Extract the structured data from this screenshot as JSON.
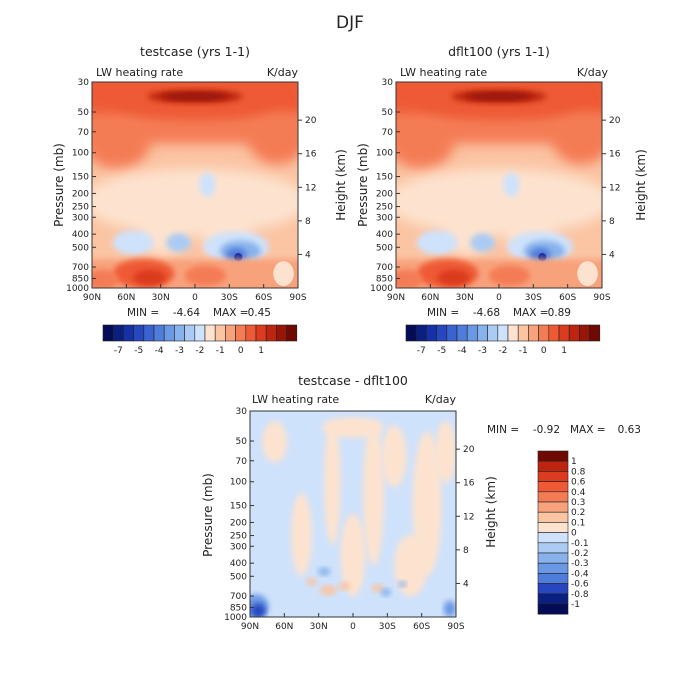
{
  "figure_title": "DJF",
  "colors": {
    "warm": [
      "#fde3cf",
      "#fbc4a3",
      "#f8a27b",
      "#f47c55",
      "#ee5a35",
      "#db3b1e",
      "#bd2510",
      "#981608",
      "#6f0a02"
    ],
    "cool": [
      "#cfe2fb",
      "#aacbf3",
      "#87b2ec",
      "#6a98e4",
      "#4f7ddb",
      "#3a62d0",
      "#2746c0",
      "#1630a8",
      "#0b1f80",
      "#030c55"
    ]
  },
  "chart_data": [
    {
      "type": "heatmap",
      "title": "testcase (yrs 1-1)",
      "left_label": "LW heating rate",
      "right_label": "K/day",
      "xlabel": "",
      "ylabel": "Pressure (mb)",
      "ylabel_right": "Height (km)",
      "x_ticks": [
        "90N",
        "60N",
        "30N",
        "0",
        "30S",
        "60S",
        "90S"
      ],
      "y_ticks": [
        "30",
        "50",
        "70",
        "100",
        "150",
        "200",
        "250",
        "300",
        "400",
        "500",
        "700",
        "850",
        "1000"
      ],
      "y_right_ticks": [
        "20",
        "16",
        "12",
        "8",
        "4"
      ],
      "min_label": "MIN =",
      "min_value": "-4.64",
      "max_label": "MAX =",
      "max_value": "0.45",
      "colorbar_levels": [
        "-7",
        "-5",
        "-4",
        "-3",
        "-2",
        "-1",
        "0",
        "1"
      ],
      "colorbar_orientation": "horizontal"
    },
    {
      "type": "heatmap",
      "title": "dflt100 (yrs 1-1)",
      "left_label": "LW heating rate",
      "right_label": "K/day",
      "xlabel": "",
      "ylabel": "Pressure (mb)",
      "ylabel_right": "Height (km)",
      "x_ticks": [
        "90N",
        "60N",
        "30N",
        "0",
        "30S",
        "60S",
        "90S"
      ],
      "y_ticks": [
        "30",
        "50",
        "70",
        "100",
        "150",
        "200",
        "250",
        "300",
        "400",
        "500",
        "700",
        "850",
        "1000"
      ],
      "y_right_ticks": [
        "20",
        "16",
        "12",
        "8",
        "4"
      ],
      "min_label": "MIN =",
      "min_value": "-4.68",
      "max_label": "MAX =",
      "max_value": "0.89",
      "colorbar_levels": [
        "-7",
        "-5",
        "-4",
        "-3",
        "-2",
        "-1",
        "0",
        "1"
      ],
      "colorbar_orientation": "horizontal"
    },
    {
      "type": "heatmap",
      "title": "testcase - dflt100",
      "left_label": "LW heating rate",
      "right_label": "K/day",
      "xlabel": "",
      "ylabel": "Pressure (mb)",
      "ylabel_right": "Height (km)",
      "x_ticks": [
        "90N",
        "60N",
        "30N",
        "0",
        "30S",
        "60S",
        "90S"
      ],
      "y_ticks": [
        "30",
        "50",
        "70",
        "100",
        "150",
        "200",
        "250",
        "300",
        "400",
        "500",
        "700",
        "850",
        "1000"
      ],
      "y_right_ticks": [
        "20",
        "16",
        "12",
        "8",
        "4"
      ],
      "min_label": "MIN =",
      "min_value": "-0.92",
      "max_label": "MAX =",
      "max_value": "0.63",
      "colorbar_levels": [
        "1",
        "0.8",
        "0.6",
        "0.4",
        "0.3",
        "0.2",
        "0.1",
        "0",
        "-0.1",
        "-0.2",
        "-0.3",
        "-0.4",
        "-0.6",
        "-0.8",
        "-1"
      ],
      "colorbar_orientation": "vertical"
    }
  ]
}
